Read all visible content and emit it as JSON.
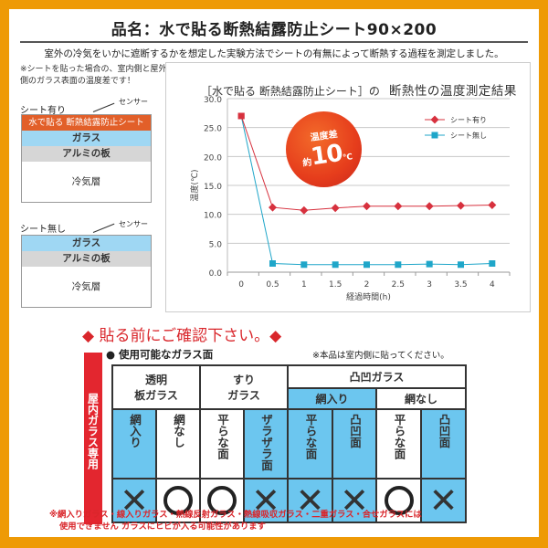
{
  "header": {
    "title": "品名：水で貼る断熱結露防止シート90×200",
    "subtitle": "室外の冷気をいかに遮断するかを想定した実験方法でシートの有無によって断熱する過程を測定しました。"
  },
  "diagram": {
    "note": "※シートを貼った場合の、室内側と屋外側のガラス表面の温度差です！",
    "with_sheet": {
      "label": "シート有り",
      "sensor": "センサー",
      "layers": [
        "水で貼る 断熱結露防止シート",
        "ガラス",
        "アルミの板",
        "冷気層"
      ]
    },
    "without_sheet": {
      "label": "シート無し",
      "sensor": "センサー",
      "layers": [
        "ガラス",
        "アルミの板",
        "冷気層"
      ]
    }
  },
  "chart": {
    "title_left": "［水で貼る 断熱結露防止シート］の",
    "title_right": "断熱性の温度測定結果",
    "badge": {
      "line1": "温度差",
      "prefix": "約",
      "value": "10",
      "unit": "℃"
    },
    "colors": {
      "with_sheet": "#d7313e",
      "without_sheet": "#1fa6c9",
      "badge": "#e63d1c"
    }
  },
  "chart_data": {
    "type": "line",
    "title": "［水で貼る 断熱結露防止シート］の 断熱性の温度測定結果",
    "xlabel": "経過時間(h)",
    "ylabel": "温度(℃)",
    "x": [
      "0",
      "0.5",
      "1",
      "1.5",
      "2",
      "2.5",
      "3",
      "3.5",
      "4"
    ],
    "ylim": [
      0,
      30
    ],
    "yticks": [
      "0.0",
      "5.0",
      "10.0",
      "15.0",
      "20.0",
      "25.0",
      "30.0"
    ],
    "grid": true,
    "legend_position": "upper right",
    "series": [
      {
        "name": "シート有り",
        "marker": "diamond",
        "values": [
          27.0,
          11.2,
          10.7,
          11.1,
          11.4,
          11.4,
          11.4,
          11.5,
          11.6
        ]
      },
      {
        "name": "シート無し",
        "marker": "square",
        "values": [
          27.0,
          1.5,
          1.3,
          1.3,
          1.3,
          1.3,
          1.4,
          1.3,
          1.5
        ]
      }
    ],
    "annotations": [
      "温度差 約10℃"
    ]
  },
  "notice": {
    "heading": "◆ 貼る前にご確認下さい。◆",
    "side_label": "屋内ガラス専用",
    "usable_label": "● 使用可能なガラス面",
    "inside_note": "※本品は室内側に貼ってください。",
    "table": {
      "groups": [
        "透明 板ガラス",
        "すり ガラス",
        "凸凹ガラス"
      ],
      "group_lines": [
        [
          "透明",
          "板ガラス"
        ],
        [
          "すり",
          "ガラス"
        ],
        [
          "凸凹ガラス"
        ]
      ],
      "subgroups": [
        "網入り",
        "網なし"
      ],
      "columns": [
        "網入り",
        "網なし",
        "平らな面",
        "ザラザラ面",
        "平らな面",
        "凸凹面",
        "平らな面",
        "凸凹面"
      ],
      "results": [
        "×",
        "○",
        "○",
        "×",
        "×",
        "×",
        "○",
        "×"
      ]
    },
    "footnote_line1": "※網入りガラス・線入りガラス・熱線反射ガラス・熱線吸収ガラス・二重ガラス・合せガラスには",
    "footnote_line2": "使用できません ガラスにヒビが入る可能性があります"
  }
}
